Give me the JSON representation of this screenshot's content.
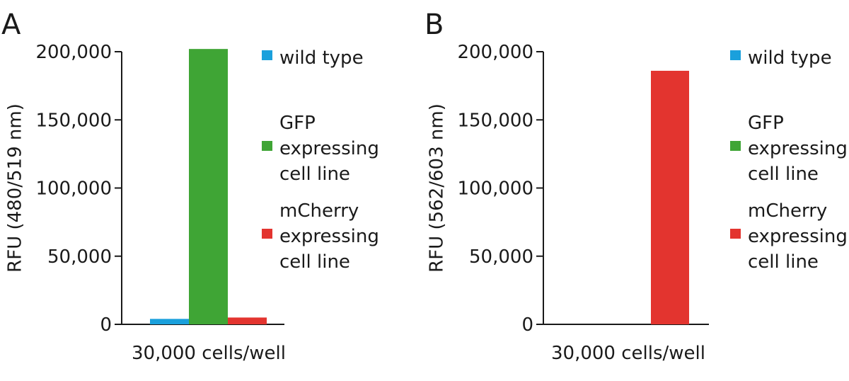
{
  "colors": {
    "wild_type": "#1aa0dc",
    "gfp": "#3fa535",
    "mcherry": "#e3342f",
    "axis": "#1a1a1a"
  },
  "chart_data": [
    {
      "type": "bar",
      "panel": "A",
      "ylabel": "RFU (480/519 nm)",
      "xlabel": "30,000 cells/well",
      "ylim": [
        0,
        200000
      ],
      "yticks": [
        "0",
        "50,000",
        "100,000",
        "150,000",
        "200,000"
      ],
      "categories": [
        "30,000 cells/well"
      ],
      "series": [
        {
          "name": "wild type",
          "legend_lines": [
            "wild type"
          ],
          "color_key": "wild_type",
          "values": [
            4000
          ]
        },
        {
          "name": "GFP expressing cell line",
          "legend_lines": [
            "GFP",
            "expressing",
            "cell line"
          ],
          "color_key": "gfp",
          "values": [
            202000
          ]
        },
        {
          "name": "mCherry expressing cell line",
          "legend_lines": [
            "mCherry",
            "expressing",
            "cell line"
          ],
          "color_key": "mcherry",
          "values": [
            5000
          ]
        }
      ],
      "legend": "right"
    },
    {
      "type": "bar",
      "panel": "B",
      "ylabel": "RFU (562/603 nm)",
      "xlabel": "30,000 cells/well",
      "ylim": [
        0,
        200000
      ],
      "yticks": [
        "0",
        "50,000",
        "100,000",
        "150,000",
        "200,000"
      ],
      "categories": [
        "30,000 cells/well"
      ],
      "series": [
        {
          "name": "wild type",
          "legend_lines": [
            "wild type"
          ],
          "color_key": "wild_type",
          "values": [
            0
          ]
        },
        {
          "name": "GFP expressing cell line",
          "legend_lines": [
            "GFP",
            "expressing",
            "cell line"
          ],
          "color_key": "gfp",
          "values": [
            0
          ]
        },
        {
          "name": "mCherry expressing cell line",
          "legend_lines": [
            "mCherry",
            "expressing",
            "cell line"
          ],
          "color_key": "mcherry",
          "values": [
            186000
          ]
        }
      ],
      "legend": "right"
    }
  ]
}
